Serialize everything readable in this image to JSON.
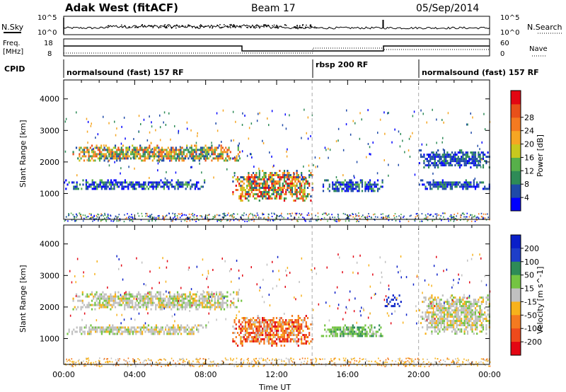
{
  "header": {
    "site": "Adak West (fitACF)",
    "beam": "Beam 17",
    "date": "05/Sep/2014"
  },
  "noise_panel": {
    "left_label": "N.Sky",
    "right_label": "N.Search",
    "left_ticks": [
      "10^5",
      "10^0"
    ],
    "right_ticks": [
      "10^5",
      "10^0"
    ]
  },
  "freq_panel": {
    "left_label_1": "Freq.",
    "left_label_2": "[MHz]",
    "right_label": "Nave",
    "left_ticks": [
      "18",
      "8"
    ],
    "right_ticks": [
      "60",
      "0"
    ]
  },
  "cpid": {
    "label": "CPID",
    "segments": [
      {
        "name": "normalsound (fast) 157 RF",
        "start_hour": 0,
        "end_hour": 14
      },
      {
        "name": "rbsp 200 RF",
        "start_hour": 14,
        "end_hour": 20
      },
      {
        "name": "normalsound (fast) 157 RF",
        "start_hour": 20,
        "end_hour": 24
      }
    ]
  },
  "axes": {
    "ylabel": "Slant Range [km]",
    "xlabel": "Time UT",
    "yticks": [
      "1000",
      "2000",
      "3000",
      "4000"
    ],
    "xticks": [
      "00:00",
      "04:00",
      "08:00",
      "12:00",
      "16:00",
      "20:00",
      "00:00"
    ]
  },
  "colorbars": {
    "power": {
      "label": "Power [dB]",
      "ticks": [
        "4",
        "8",
        "12",
        "16",
        "20",
        "24",
        "28"
      ],
      "colors": [
        "#0000ff",
        "#1f4aa8",
        "#2e8b57",
        "#57b04a",
        "#c8c81e",
        "#f5a623",
        "#f47a20",
        "#e8501a",
        "#e30613"
      ]
    },
    "velocity": {
      "label": "Velocity [m s^-1]",
      "ticks": [
        "200",
        "100",
        "50",
        "15",
        "-15",
        "-50",
        "-100",
        "-200"
      ],
      "colors": [
        "#0a1fc8",
        "#1e3ec8",
        "#2e8b57",
        "#74c442",
        "#c0c0c0",
        "#f7b21c",
        "#f47a20",
        "#ee4a1c",
        "#e30613"
      ]
    }
  },
  "chart_data": {
    "type": "heatmap",
    "x": {
      "unit": "hours UT",
      "range": [
        0,
        24
      ]
    },
    "y": {
      "unit": "km",
      "range": [
        180,
        4600
      ]
    },
    "power_regions": [
      {
        "t0": 0.5,
        "t1": 10.0,
        "r0": 2050,
        "r1": 2550,
        "level": "medium-high"
      },
      {
        "t0": 0.0,
        "t1": 8.0,
        "r0": 1150,
        "r1": 1450,
        "level": "low-medium"
      },
      {
        "t0": 9.5,
        "t1": 14.0,
        "r0": 800,
        "r1": 1750,
        "level": "high"
      },
      {
        "t0": 14.5,
        "t1": 18.0,
        "r0": 1050,
        "r1": 1450,
        "level": "low-medium"
      },
      {
        "t0": 20.0,
        "t1": 24.0,
        "r0": 1850,
        "r1": 2400,
        "level": "low"
      },
      {
        "t0": 20.0,
        "t1": 24.0,
        "r0": 1150,
        "r1": 1450,
        "level": "low"
      }
    ],
    "velocity_regions": [
      {
        "t0": 0.5,
        "t1": 10.0,
        "r0": 1950,
        "r1": 2500,
        "vel": "-15 to 15"
      },
      {
        "t0": 0.0,
        "t1": 8.0,
        "r0": 1150,
        "r1": 1450,
        "vel": "-15 to 15"
      },
      {
        "t0": 9.5,
        "t1": 14.0,
        "r0": 800,
        "r1": 1750,
        "vel": "-50 to -200"
      },
      {
        "t0": 14.5,
        "t1": 18.0,
        "r0": 1050,
        "r1": 1450,
        "vel": "15 to 50"
      },
      {
        "t0": 18.0,
        "t1": 19.0,
        "r0": 2000,
        "r1": 2400,
        "vel": "100 to 200"
      },
      {
        "t0": 20.0,
        "t1": 24.0,
        "r0": 1150,
        "r1": 2400,
        "vel": "-15 to 15"
      }
    ]
  }
}
